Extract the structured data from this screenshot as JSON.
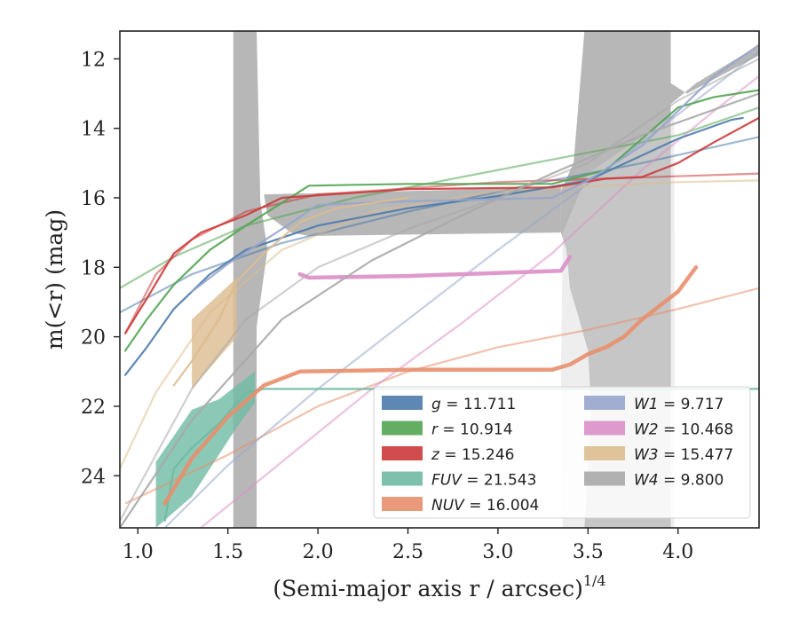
{
  "chart_data": {
    "type": "line",
    "xlabel": "(Semi-major axis r / arcsec)",
    "xlabel_superscript": "1/4",
    "ylabel": "m(<r) (mag)",
    "xlim": [
      0.9,
      4.45
    ],
    "ylim": [
      25.5,
      11.2
    ],
    "y_inverted": true,
    "x_ticks": [
      "1.0",
      "1.5",
      "2.0",
      "2.5",
      "3.0",
      "3.5",
      "4.0"
    ],
    "y_ticks": [
      "12",
      "14",
      "16",
      "18",
      "20",
      "22",
      "24"
    ],
    "legend_position": "lower-right",
    "legend": [
      {
        "band": "g",
        "value": "11.711",
        "color": "#4c7bab"
      },
      {
        "band": "r",
        "value": "10.914",
        "color": "#52a552"
      },
      {
        "band": "z",
        "value": "15.246",
        "color": "#cc3a3a"
      },
      {
        "band": "FUV",
        "value": "21.543",
        "color": "#6fbaa4"
      },
      {
        "band": "NUV",
        "value": "16.004",
        "color": "#e88f6c"
      },
      {
        "band": "W1",
        "value": "9.717",
        "color": "#98a5cc"
      },
      {
        "band": "W2",
        "value": "10.468",
        "color": "#dc8fc8"
      },
      {
        "band": "W3",
        "value": "15.477",
        "color": "#dcbc8e"
      },
      {
        "band": "W4",
        "value": "9.800",
        "color": "#a8a8a8"
      }
    ],
    "series": [
      {
        "name": "g",
        "color": "#4c7bab",
        "measured": [
          [
            0.93,
            21.1
          ],
          [
            1.05,
            20.3
          ],
          [
            1.2,
            19.2
          ],
          [
            1.4,
            18.2
          ],
          [
            1.6,
            17.5
          ],
          [
            2.0,
            16.8
          ],
          [
            2.5,
            16.3
          ],
          [
            3.0,
            15.95
          ],
          [
            3.5,
            15.5
          ],
          [
            4.0,
            14.3
          ],
          [
            4.3,
            13.75
          ],
          [
            4.36,
            13.7
          ]
        ],
        "model": [
          [
            0.9,
            19.3
          ],
          [
            1.3,
            18.2
          ],
          [
            1.8,
            17.3
          ],
          [
            2.5,
            16.4
          ],
          [
            3.2,
            15.6
          ],
          [
            3.8,
            15.0
          ],
          [
            4.45,
            14.25
          ]
        ]
      },
      {
        "name": "r",
        "color": "#52a552",
        "measured": [
          [
            0.93,
            20.4
          ],
          [
            1.05,
            19.5
          ],
          [
            1.2,
            18.5
          ],
          [
            1.4,
            17.5
          ],
          [
            1.6,
            16.8
          ],
          [
            1.95,
            15.65
          ],
          [
            2.5,
            15.6
          ],
          [
            3.3,
            15.6
          ],
          [
            3.6,
            15.2
          ],
          [
            4.0,
            13.4
          ],
          [
            4.2,
            13.1
          ],
          [
            4.45,
            12.9
          ]
        ],
        "model": [
          [
            0.9,
            18.6
          ],
          [
            1.2,
            17.7
          ],
          [
            1.6,
            16.8
          ],
          [
            2.2,
            16.0
          ],
          [
            2.8,
            15.4
          ],
          [
            3.5,
            14.7
          ],
          [
            4.0,
            14.2
          ],
          [
            4.45,
            13.4
          ]
        ]
      },
      {
        "name": "z",
        "color": "#cc3a3a",
        "measured": [
          [
            0.93,
            19.9
          ],
          [
            1.05,
            18.9
          ],
          [
            1.2,
            17.6
          ],
          [
            1.35,
            17.0
          ],
          [
            1.6,
            16.5
          ],
          [
            1.8,
            16.0
          ],
          [
            2.5,
            15.75
          ],
          [
            3.3,
            15.7
          ],
          [
            3.6,
            15.45
          ],
          [
            3.8,
            15.4
          ],
          [
            4.0,
            15.0
          ],
          [
            4.2,
            14.4
          ],
          [
            4.45,
            13.7
          ]
        ],
        "model": [
          [
            0.93,
            19.9
          ],
          [
            1.1,
            18.2
          ],
          [
            1.3,
            17.2
          ],
          [
            1.6,
            16.4
          ],
          [
            2.0,
            15.9
          ],
          [
            3.0,
            15.55
          ],
          [
            4.45,
            15.3
          ]
        ]
      },
      {
        "name": "FUV",
        "color": "#6fbaa4",
        "measured": [
          [
            1.15,
            25.3
          ],
          [
            1.2,
            23.8
          ],
          [
            1.3,
            23.2
          ],
          [
            1.45,
            22.5
          ],
          [
            1.55,
            21.9
          ],
          [
            1.6,
            21.6
          ],
          [
            1.7,
            21.5
          ],
          [
            2.5,
            21.5
          ],
          [
            4.45,
            21.5
          ]
        ],
        "band_upper": [
          [
            1.1,
            23.6
          ],
          [
            1.3,
            22.1
          ],
          [
            1.45,
            21.8
          ],
          [
            1.55,
            21.4
          ],
          [
            1.65,
            21.0
          ]
        ],
        "band_lower": [
          [
            1.1,
            25.5
          ],
          [
            1.3,
            24.6
          ],
          [
            1.45,
            23.4
          ],
          [
            1.55,
            22.6
          ],
          [
            1.65,
            21.9
          ]
        ]
      },
      {
        "name": "NUV",
        "color": "#e88f6c",
        "measured": [
          [
            1.15,
            24.8
          ],
          [
            1.3,
            23.5
          ],
          [
            1.5,
            22.3
          ],
          [
            1.7,
            21.4
          ],
          [
            1.9,
            21.0
          ],
          [
            2.5,
            20.95
          ],
          [
            3.3,
            20.95
          ],
          [
            3.4,
            20.8
          ],
          [
            3.5,
            20.5
          ],
          [
            3.6,
            20.3
          ],
          [
            3.7,
            20.0
          ],
          [
            3.8,
            19.5
          ],
          [
            3.9,
            19.1
          ],
          [
            4.0,
            18.7
          ],
          [
            4.1,
            18.0
          ]
        ],
        "model": [
          [
            0.93,
            24.8
          ],
          [
            1.5,
            23.4
          ],
          [
            2.0,
            22.0
          ],
          [
            2.5,
            21.0
          ],
          [
            3.0,
            20.3
          ],
          [
            3.5,
            19.8
          ],
          [
            4.0,
            19.2
          ],
          [
            4.45,
            18.6
          ]
        ]
      },
      {
        "name": "W1",
        "color": "#98a5cc",
        "measured": [
          [
            1.3,
            18.7
          ],
          [
            1.5,
            17.9
          ],
          [
            1.8,
            16.9
          ],
          [
            2.0,
            16.2
          ],
          [
            2.5,
            16.1
          ],
          [
            3.3,
            16.0
          ],
          [
            3.5,
            15.5
          ],
          [
            3.8,
            14.5
          ],
          [
            4.0,
            13.5
          ],
          [
            4.2,
            12.5
          ],
          [
            4.45,
            11.6
          ]
        ],
        "model": [
          [
            1.15,
            25.5
          ],
          [
            1.5,
            23.7
          ],
          [
            2.0,
            21.5
          ],
          [
            2.5,
            19.5
          ],
          [
            3.0,
            17.5
          ],
          [
            3.5,
            15.6
          ],
          [
            4.0,
            13.6
          ],
          [
            4.45,
            11.8
          ]
        ]
      },
      {
        "name": "W2",
        "color": "#dc8fc8",
        "measured": [
          [
            1.9,
            18.2
          ],
          [
            1.95,
            18.3
          ],
          [
            2.5,
            18.25
          ],
          [
            3.35,
            18.1
          ],
          [
            3.4,
            17.7
          ]
        ],
        "model": [
          [
            1.35,
            25.5
          ],
          [
            1.8,
            23.6
          ],
          [
            2.3,
            21.5
          ],
          [
            2.8,
            19.6
          ],
          [
            3.3,
            17.6
          ],
          [
            3.8,
            15.2
          ],
          [
            4.2,
            13.5
          ],
          [
            4.45,
            12.5
          ]
        ]
      },
      {
        "name": "W3",
        "color": "#dcbc8e",
        "measured": [
          [
            1.2,
            21.4
          ],
          [
            1.3,
            20.7
          ],
          [
            1.45,
            19.5
          ],
          [
            1.55,
            18.4
          ],
          [
            1.7,
            17.6
          ],
          [
            1.9,
            16.7
          ],
          [
            2.1,
            16.3
          ],
          [
            2.5,
            16.0
          ]
        ],
        "band_upper": [
          [
            1.3,
            19.5
          ],
          [
            1.55,
            18.3
          ]
        ],
        "band_lower": [
          [
            1.3,
            21.5
          ],
          [
            1.55,
            20.0
          ]
        ],
        "model": [
          [
            0.9,
            23.8
          ],
          [
            1.1,
            21.6
          ],
          [
            1.4,
            19.3
          ],
          [
            1.8,
            17.5
          ],
          [
            2.3,
            16.4
          ],
          [
            3.0,
            15.8
          ],
          [
            4.0,
            15.55
          ],
          [
            4.45,
            15.5
          ]
        ]
      },
      {
        "name": "W4",
        "color": "#a8a8a8",
        "measured": [
          [
            0.9,
            25.5
          ],
          [
            1.3,
            22.4
          ],
          [
            1.8,
            19.5
          ],
          [
            2.3,
            17.8
          ],
          [
            2.8,
            16.5
          ],
          [
            3.3,
            15.3
          ],
          [
            3.8,
            14.2
          ],
          [
            4.45,
            13.0
          ]
        ],
        "model": [
          [
            0.9,
            25.3
          ],
          [
            1.3,
            21.5
          ],
          [
            1.6,
            19.5
          ],
          [
            2.0,
            18.0
          ],
          [
            2.5,
            16.9
          ],
          [
            3.0,
            16.0
          ],
          [
            3.5,
            15.0
          ],
          [
            4.0,
            13.2
          ],
          [
            4.45,
            12.0
          ]
        ]
      }
    ]
  }
}
